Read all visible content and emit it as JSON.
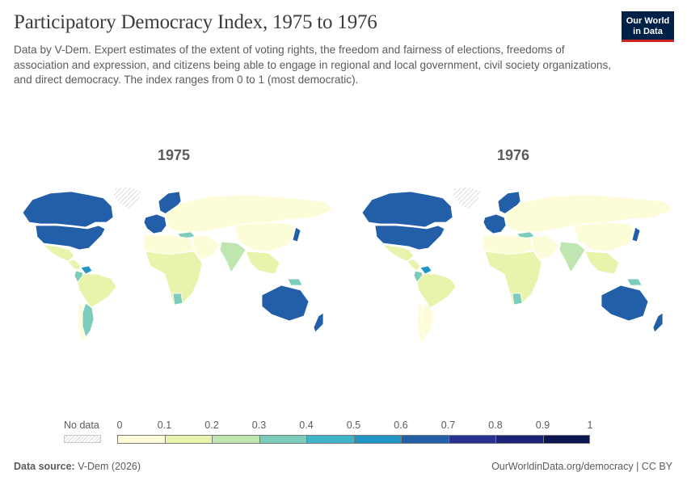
{
  "header": {
    "title": "Participatory Democracy Index, 1975 to 1976",
    "subtitle": "Data by V-Dem. Expert estimates of the extent of voting rights, the freedom and fairness of elections, freedoms of association and expression, and citizens being able to engage in regional and local government, civil society organizations, and direct democracy. The index ranges from 0 to 1 (most democratic).",
    "logo_line1": "Our World",
    "logo_line2": "in Data"
  },
  "maps": [
    {
      "year": "1975"
    },
    {
      "year": "1976"
    }
  ],
  "legend": {
    "no_data_label": "No data",
    "ticks": [
      "0",
      "0.1",
      "0.2",
      "0.3",
      "0.4",
      "0.5",
      "0.6",
      "0.7",
      "0.8",
      "0.9",
      "1"
    ],
    "colors": [
      "#fdfcd8",
      "#e8f3ab",
      "#bfe6b0",
      "#7cccbc",
      "#3fb3c8",
      "#2294c3",
      "#235fa8",
      "#27318f",
      "#1a2375",
      "#0b1550"
    ]
  },
  "footer": {
    "source_label": "Data source:",
    "source_value": "V-Dem (2026)",
    "link": "OurWorldinData.org/democracy | CC BY"
  },
  "chart_data": {
    "type": "choropleth",
    "title": "Participatory Democracy Index, 1975 to 1976",
    "range": [
      0,
      1
    ],
    "bins": [
      0,
      0.1,
      0.2,
      0.3,
      0.4,
      0.5,
      0.6,
      0.7,
      0.8,
      0.9,
      1
    ],
    "panels": [
      {
        "year": "1975",
        "regions": [
          {
            "name": "Canada",
            "value": 0.62
          },
          {
            "name": "United States",
            "value": 0.6
          },
          {
            "name": "Greenland",
            "value": null
          },
          {
            "name": "Mexico",
            "value": 0.15
          },
          {
            "name": "Central America",
            "value": 0.12
          },
          {
            "name": "Venezuela",
            "value": 0.5
          },
          {
            "name": "Colombia",
            "value": 0.32
          },
          {
            "name": "Brazil",
            "value": 0.1
          },
          {
            "name": "Argentina",
            "value": 0.35
          },
          {
            "name": "Chile",
            "value": 0.08
          },
          {
            "name": "Western Europe",
            "value": 0.65
          },
          {
            "name": "Scandinavia",
            "value": 0.67
          },
          {
            "name": "Eastern Europe & USSR",
            "value": 0.06
          },
          {
            "name": "Turkey",
            "value": 0.35
          },
          {
            "name": "North Africa",
            "value": 0.08
          },
          {
            "name": "Sub-Saharan Africa",
            "value": 0.1
          },
          {
            "name": "Botswana",
            "value": 0.35
          },
          {
            "name": "Middle East",
            "value": 0.07
          },
          {
            "name": "India",
            "value": 0.25
          },
          {
            "name": "China",
            "value": 0.04
          },
          {
            "name": "Southeast Asia",
            "value": 0.12
          },
          {
            "name": "Japan",
            "value": 0.6
          },
          {
            "name": "Papua New Guinea",
            "value": 0.38
          },
          {
            "name": "Australia",
            "value": 0.68
          },
          {
            "name": "New Zealand",
            "value": 0.66
          }
        ]
      },
      {
        "year": "1976",
        "regions": [
          {
            "name": "Canada",
            "value": 0.62
          },
          {
            "name": "United States",
            "value": 0.6
          },
          {
            "name": "Greenland",
            "value": null
          },
          {
            "name": "Mexico",
            "value": 0.15
          },
          {
            "name": "Central America",
            "value": 0.12
          },
          {
            "name": "Venezuela",
            "value": 0.5
          },
          {
            "name": "Colombia",
            "value": 0.32
          },
          {
            "name": "Brazil",
            "value": 0.1
          },
          {
            "name": "Argentina",
            "value": 0.06
          },
          {
            "name": "Chile",
            "value": 0.08
          },
          {
            "name": "Western Europe",
            "value": 0.65
          },
          {
            "name": "Scandinavia",
            "value": 0.67
          },
          {
            "name": "Eastern Europe & USSR",
            "value": 0.06
          },
          {
            "name": "Turkey",
            "value": 0.35
          },
          {
            "name": "North Africa",
            "value": 0.08
          },
          {
            "name": "Sub-Saharan Africa",
            "value": 0.1
          },
          {
            "name": "Botswana",
            "value": 0.35
          },
          {
            "name": "Middle East",
            "value": 0.07
          },
          {
            "name": "India",
            "value": 0.2
          },
          {
            "name": "China",
            "value": 0.04
          },
          {
            "name": "Southeast Asia",
            "value": 0.12
          },
          {
            "name": "Japan",
            "value": 0.6
          },
          {
            "name": "Papua New Guinea",
            "value": 0.38
          },
          {
            "name": "Australia",
            "value": 0.68
          },
          {
            "name": "New Zealand",
            "value": 0.66
          }
        ]
      }
    ]
  }
}
